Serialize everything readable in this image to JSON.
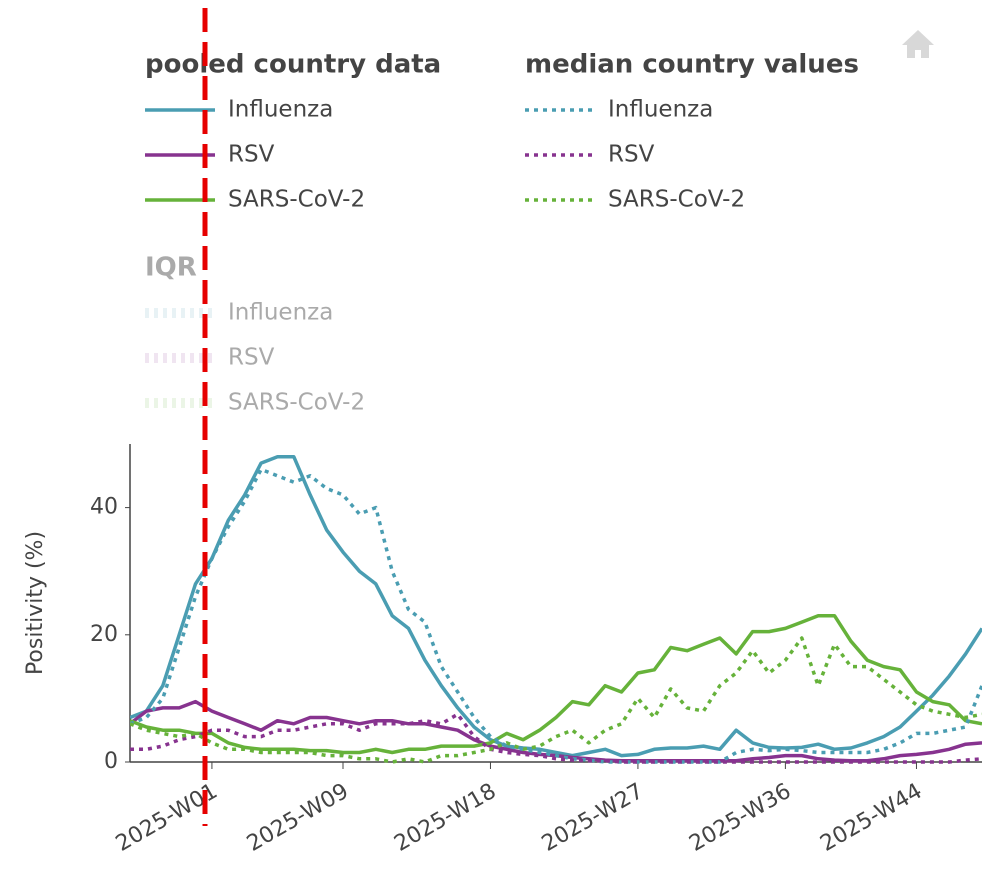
{
  "chart_data": {
    "type": "line",
    "y_title": "Positivity (%)",
    "ylim": [
      0,
      50
    ],
    "yticks": [
      0,
      20,
      40
    ],
    "categories": [
      null,
      null,
      null,
      null,
      null,
      "2025-W01",
      null,
      null,
      null,
      null,
      null,
      null,
      null,
      "2025-W09",
      null,
      null,
      null,
      null,
      null,
      null,
      null,
      null,
      "2025-W18",
      null,
      null,
      null,
      null,
      null,
      null,
      null,
      null,
      "2025-W27",
      null,
      null,
      null,
      null,
      null,
      null,
      null,
      null,
      "2025-W36",
      null,
      null,
      null,
      null,
      null,
      null,
      null,
      "2025-W44",
      null,
      null,
      null,
      null
    ],
    "series_groups": [
      {
        "title": "pooled country data",
        "line_style": "solid",
        "series": [
          {
            "name": "Influenza",
            "color": "#4a9db2",
            "values": [
              7,
              8,
              12,
              20,
              28,
              32,
              38,
              42,
              47,
              48,
              48,
              42,
              36.5,
              33,
              30,
              28,
              23,
              21,
              16,
              12,
              8.5,
              5.5,
              3.5,
              2.5,
              2.2,
              2,
              1.5,
              1,
              1.5,
              2,
              1,
              1.2,
              2,
              2.2,
              2.2,
              2.5,
              2,
              5,
              3,
              2.3,
              2.2,
              2.3,
              2.8,
              2,
              2.2,
              3,
              4,
              5.5,
              8,
              10.5,
              13.5,
              17,
              21
            ]
          },
          {
            "name": "RSV",
            "color": "#87338f",
            "values": [
              6,
              8,
              8.5,
              8.5,
              9.5,
              8,
              7,
              6,
              5,
              6.5,
              6,
              7,
              7,
              6.5,
              6,
              6.5,
              6.5,
              6,
              6,
              5.5,
              5,
              3.5,
              2.5,
              2,
              1.5,
              1.2,
              1,
              0.7,
              0.5,
              0.3,
              0.2,
              0.2,
              0.2,
              0.2,
              0.2,
              0.2,
              0.2,
              0.2,
              0.5,
              0.7,
              1,
              1,
              0.5,
              0.3,
              0.2,
              0.2,
              0.5,
              1,
              1.2,
              1.5,
              2,
              2.8,
              3
            ]
          },
          {
            "name": "SARS-CoV-2",
            "color": "#66b23a",
            "values": [
              6.5,
              5.5,
              5,
              5,
              4.5,
              4.5,
              3,
              2.3,
              2,
              2,
              2,
              1.8,
              1.8,
              1.5,
              1.5,
              2,
              1.5,
              2,
              2,
              2.5,
              2.5,
              2.5,
              3,
              4.5,
              3.5,
              5,
              7,
              9.5,
              9,
              12,
              11,
              14,
              14.5,
              18,
              17.5,
              18.5,
              19.5,
              17,
              20.5,
              20.5,
              21,
              22,
              23,
              23,
              19,
              16,
              15,
              14.5,
              11,
              9.5,
              9,
              6.5,
              6
            ]
          }
        ]
      },
      {
        "title": "median country values",
        "line_style": "dotted",
        "series": [
          {
            "name": "Influenza",
            "color": "#4a9db2",
            "values": [
              6,
              7,
              10,
              18,
              26,
              32,
              37,
              41,
              46,
              45,
              44,
              45,
              43,
              42,
              39,
              40,
              30,
              24,
              22,
              15,
              11,
              7,
              4,
              2.5,
              2,
              1.5,
              1,
              0.5,
              0.3,
              0,
              0,
              0,
              0,
              0,
              0,
              0,
              0,
              1.5,
              2,
              1.8,
              2,
              1.8,
              1.5,
              1.5,
              1.5,
              1.5,
              2,
              3,
              4.5,
              4.5,
              5,
              5.5,
              12
            ]
          },
          {
            "name": "RSV",
            "color": "#87338f",
            "values": [
              2,
              2,
              2.5,
              3.5,
              4,
              5,
              5,
              4,
              4,
              5,
              5,
              5.5,
              6,
              6,
              5,
              6,
              6,
              6,
              6.5,
              6,
              7.5,
              4,
              2,
              1.5,
              1.2,
              1,
              0.5,
              0.3,
              0.2,
              0.2,
              0,
              0,
              0,
              0,
              0,
              0,
              0,
              0,
              0,
              0,
              0,
              0,
              0,
              0,
              0,
              0,
              0,
              0,
              0,
              0,
              0,
              0.3,
              0.5
            ]
          },
          {
            "name": "SARS-CoV-2",
            "color": "#66b23a",
            "values": [
              6,
              5,
              4.5,
              4,
              4.5,
              3,
              2,
              2,
              1.5,
              1.5,
              1.5,
              1.5,
              1,
              1,
              0.5,
              0.5,
              0,
              0.5,
              0,
              1,
              1,
              1.5,
              2,
              3,
              2,
              2.5,
              4,
              5,
              3,
              5,
              6,
              10,
              7,
              11.5,
              8.5,
              8,
              12,
              14,
              17.5,
              14,
              16,
              19.5,
              12,
              18.5,
              15,
              15,
              13,
              11,
              9,
              8,
              7.5,
              7,
              7.5
            ]
          }
        ]
      },
      {
        "title": "IQR",
        "line_style": "band",
        "hidden": true,
        "series": [
          {
            "name": "Influenza",
            "color": "#4a9db2"
          },
          {
            "name": "RSV",
            "color": "#87338f"
          },
          {
            "name": "SARS-CoV-2",
            "color": "#66b23a"
          }
        ]
      }
    ]
  }
}
